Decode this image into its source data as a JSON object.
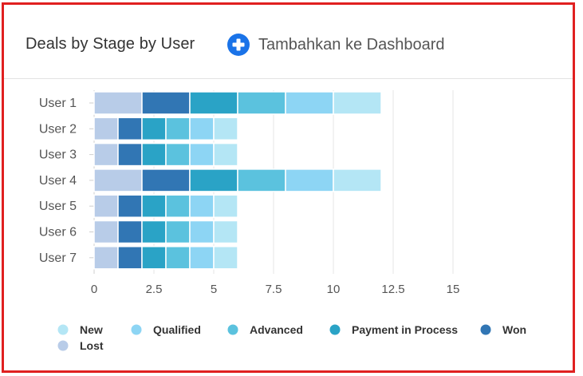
{
  "header": {
    "title": "Deals by Stage by User",
    "add_button_label": "Tambahkan ke Dashboard",
    "add_icon": "plus-circle-icon"
  },
  "colors": {
    "frame_border": "#e02020",
    "grid": "#e6e6e6",
    "add_icon": "#1a73e8"
  },
  "chart_data": {
    "type": "bar",
    "orientation": "horizontal",
    "stacked": true,
    "title": "Deals by Stage by User",
    "categories": [
      "User 1",
      "User 2",
      "User 3",
      "User 4",
      "User 5",
      "User 6",
      "User 7"
    ],
    "series": [
      {
        "name": "Lost",
        "color": "#b8cce8",
        "values": [
          2,
          1,
          1,
          2,
          1,
          1,
          1
        ]
      },
      {
        "name": "Won",
        "color": "#3176b4",
        "values": [
          2,
          1,
          1,
          2,
          1,
          1,
          1
        ]
      },
      {
        "name": "Payment in Process",
        "color": "#2aa3c6",
        "values": [
          2,
          1,
          1,
          2,
          1,
          1,
          1
        ]
      },
      {
        "name": "Advanced",
        "color": "#5bc2de",
        "values": [
          2,
          1,
          1,
          2,
          1,
          1,
          1
        ]
      },
      {
        "name": "Qualified",
        "color": "#8dd5f4",
        "values": [
          2,
          1,
          1,
          2,
          1,
          1,
          1
        ]
      },
      {
        "name": "New",
        "color": "#b4e6f5",
        "values": [
          2,
          1,
          1,
          2,
          1,
          1,
          1
        ]
      }
    ],
    "xticks": [
      0,
      2.5,
      5,
      7.5,
      10,
      12.5,
      15
    ],
    "xtick_labels": [
      "0",
      "2.5",
      "5",
      "7.5",
      "10",
      "12.5",
      "15"
    ],
    "xlim": [
      0,
      15
    ],
    "grid": true,
    "legend": {
      "placement": "bottom",
      "order": [
        "New",
        "Qualified",
        "Advanced",
        "Payment in Process",
        "Won",
        "Lost"
      ]
    },
    "xlabel": "",
    "ylabel": ""
  }
}
